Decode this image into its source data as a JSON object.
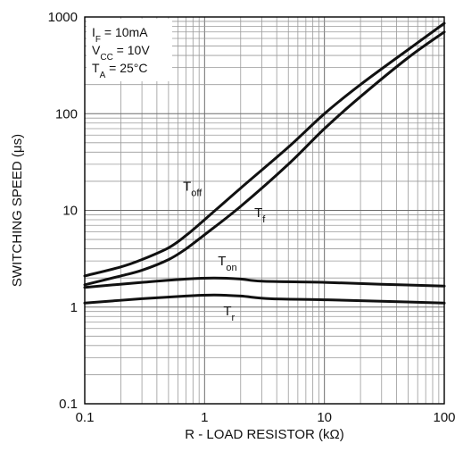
{
  "chart_data": {
    "type": "line",
    "xlabel": "R - LOAD RESISTOR (kΩ)",
    "ylabel": "SWITCHING SPEED (μs)",
    "xscale": "log",
    "yscale": "log",
    "xlim": [
      0.1,
      100
    ],
    "ylim": [
      0.1,
      1000
    ],
    "grid": true,
    "x_ticks": [
      "0.1",
      "1",
      "10",
      "100"
    ],
    "y_ticks": [
      "0.1",
      "1",
      "10",
      "100",
      "1000"
    ],
    "conditions": [
      {
        "sym": "I",
        "sub": "F",
        "rest": " = 10mA"
      },
      {
        "sym": "V",
        "sub": "CC",
        "rest": " = 10V"
      },
      {
        "sym": "T",
        "sub": "A",
        "rest": " = 25°C"
      }
    ],
    "series": [
      {
        "name": "Toff",
        "label_main": "T",
        "label_sub": "off",
        "points": [
          [
            0.1,
            2.1
          ],
          [
            0.2,
            2.6
          ],
          [
            0.3,
            3.1
          ],
          [
            0.5,
            4.1
          ],
          [
            0.7,
            5.5
          ],
          [
            1.0,
            8.0
          ],
          [
            2.0,
            17
          ],
          [
            5.0,
            45
          ],
          [
            10,
            100
          ],
          [
            20,
            200
          ],
          [
            50,
            460
          ],
          [
            100,
            860
          ]
        ]
      },
      {
        "name": "Tf",
        "label_main": "T",
        "label_sub": "f",
        "points": [
          [
            0.1,
            1.7
          ],
          [
            0.2,
            2.1
          ],
          [
            0.3,
            2.4
          ],
          [
            0.5,
            3.1
          ],
          [
            0.7,
            4.0
          ],
          [
            1.0,
            5.6
          ],
          [
            2.0,
            11
          ],
          [
            5.0,
            30
          ],
          [
            10,
            70
          ],
          [
            20,
            150
          ],
          [
            50,
            380
          ],
          [
            100,
            700
          ]
        ]
      },
      {
        "name": "Ton",
        "label_main": "T",
        "label_sub": "on",
        "points": [
          [
            0.1,
            1.6
          ],
          [
            0.3,
            1.8
          ],
          [
            0.7,
            1.95
          ],
          [
            1.2,
            2.0
          ],
          [
            2.0,
            1.95
          ],
          [
            3.0,
            1.85
          ],
          [
            10,
            1.8
          ],
          [
            30,
            1.72
          ],
          [
            100,
            1.65
          ]
        ]
      },
      {
        "name": "Tr",
        "label_main": "T",
        "label_sub": "r",
        "points": [
          [
            0.1,
            1.1
          ],
          [
            0.3,
            1.22
          ],
          [
            0.7,
            1.3
          ],
          [
            1.2,
            1.33
          ],
          [
            2.0,
            1.3
          ],
          [
            3.5,
            1.22
          ],
          [
            10,
            1.19
          ],
          [
            30,
            1.15
          ],
          [
            100,
            1.1
          ]
        ]
      }
    ]
  }
}
